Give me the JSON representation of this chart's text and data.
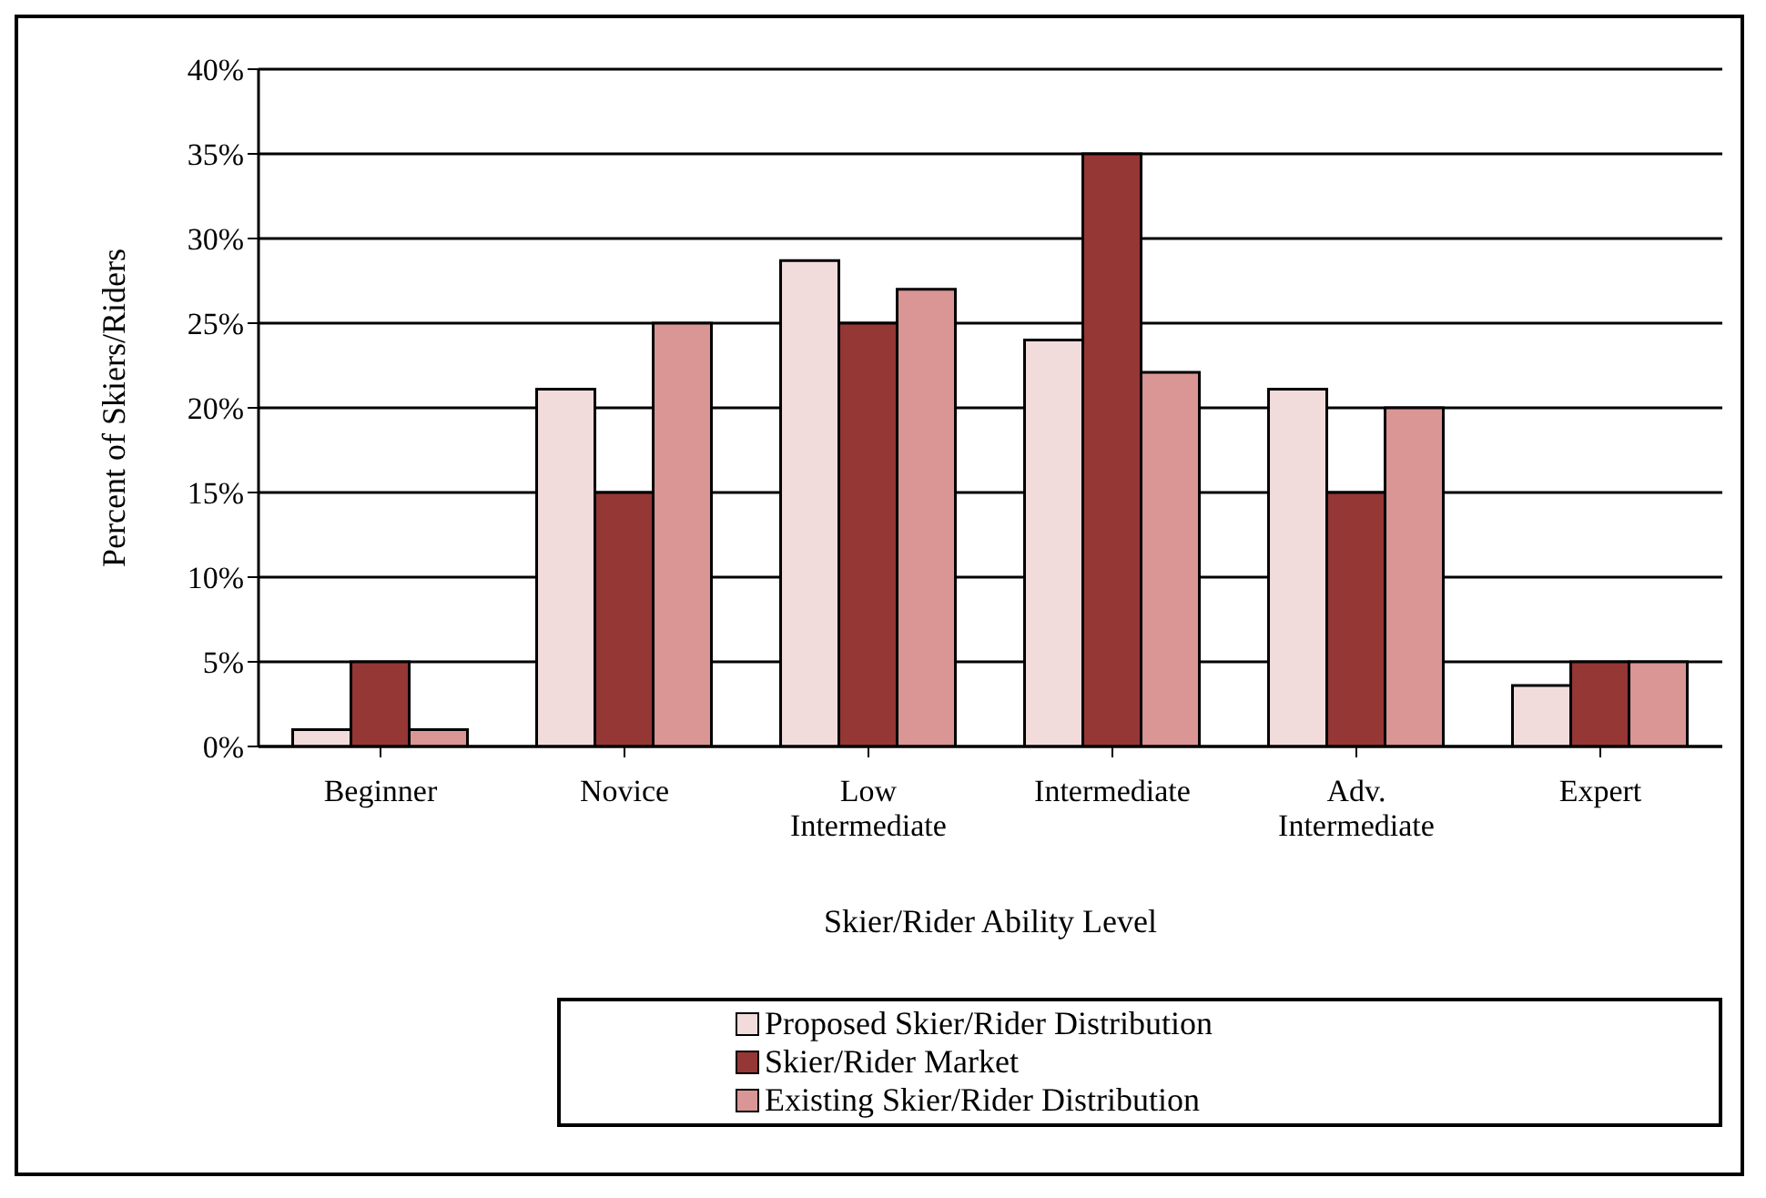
{
  "chart_data": {
    "type": "bar",
    "xlabel": "Skier/Rider Ability Level",
    "ylabel": "Percent of Skiers/Riders",
    "categories": [
      "Beginner",
      "Novice",
      "Low Intermediate",
      "Intermediate",
      "Adv. Intermediate",
      "Expert"
    ],
    "series": [
      {
        "name": "Proposed Skier/Rider Distribution",
        "color": "#f2dcdb",
        "values": [
          1,
          21.1,
          28.7,
          24.0,
          21.1,
          3.6
        ]
      },
      {
        "name": "Skier/Rider Market",
        "color": "#953735",
        "values": [
          5,
          15,
          25,
          35,
          15,
          5
        ]
      },
      {
        "name": "Existing Skier/Rider Distribution",
        "color": "#d99694",
        "values": [
          1,
          25,
          27,
          22.1,
          20,
          5
        ]
      }
    ],
    "ylim": [
      0,
      40
    ],
    "yticks": [
      {
        "value": 0,
        "label": "0%"
      },
      {
        "value": 5,
        "label": "5%"
      },
      {
        "value": 10,
        "label": "10%"
      },
      {
        "value": 15,
        "label": "15%"
      },
      {
        "value": 20,
        "label": "20%"
      },
      {
        "value": 25,
        "label": "25%"
      },
      {
        "value": 30,
        "label": "30%"
      },
      {
        "value": 35,
        "label": "35%"
      },
      {
        "value": 40,
        "label": "40%"
      }
    ],
    "grid": "y",
    "legend": "bottom"
  }
}
